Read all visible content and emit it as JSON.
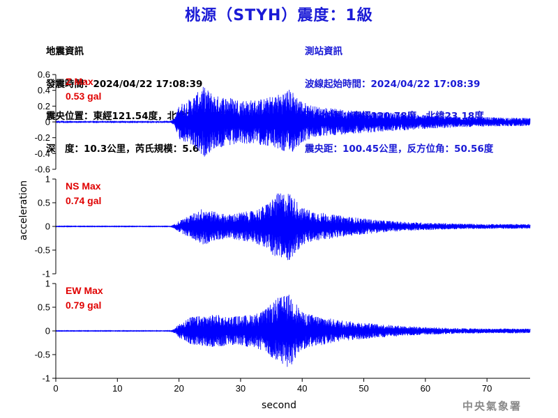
{
  "header": {
    "title": "桃源（STYH）震度：1級",
    "event_info": [
      "地震資訊",
      "發震時間：2024/04/22 17:08:39",
      "震央位置：東經121.54度，北緯23.76度",
      "深　度：10.3公里，芮氏規模：5.6"
    ],
    "station_info": [
      "測站資訊",
      "波線起始時間：2024/04/22 17:08:39",
      "測站位置：東經120.78度，北緯23.18度",
      "震央距：100.45公里，反方位角：50.56度"
    ]
  },
  "footer": {
    "agency": "中央氣象署"
  },
  "colors": {
    "title": "#1a1ad6",
    "trace": "#0000ff",
    "max_label": "#e00000",
    "axis": "#000000"
  },
  "chart_data": [
    {
      "type": "line",
      "component": "Z",
      "max_label": "Z Max",
      "max_value_label": "0.53 gal",
      "ylim": [
        -0.6,
        0.6
      ],
      "y_ticks": [
        "0.6",
        "0.4",
        "0.2",
        "0",
        "-0.2",
        "-0.4",
        "-0.6"
      ],
      "peak": 0.53,
      "envelope": [
        [
          0,
          0.006
        ],
        [
          18.5,
          0.006
        ],
        [
          19.3,
          0.05
        ],
        [
          20,
          0.22
        ],
        [
          22,
          0.3
        ],
        [
          24,
          0.45
        ],
        [
          26,
          0.33
        ],
        [
          28,
          0.32
        ],
        [
          30,
          0.28
        ],
        [
          32,
          0.28
        ],
        [
          34,
          0.3
        ],
        [
          36,
          0.35
        ],
        [
          38,
          0.42
        ],
        [
          40,
          0.26
        ],
        [
          42,
          0.2
        ],
        [
          45,
          0.17
        ],
        [
          48,
          0.15
        ],
        [
          52,
          0.13
        ],
        [
          56,
          0.11
        ],
        [
          60,
          0.09
        ],
        [
          65,
          0.07
        ],
        [
          70,
          0.06
        ],
        [
          77,
          0.05
        ]
      ]
    },
    {
      "type": "line",
      "component": "NS",
      "max_label": "NS Max",
      "max_value_label": "0.74 gal",
      "ylim": [
        -1,
        1
      ],
      "y_ticks": [
        "1",
        "0.5",
        "0",
        "-0.5",
        "-1"
      ],
      "peak": 0.74,
      "envelope": [
        [
          0,
          0.006
        ],
        [
          18.5,
          0.006
        ],
        [
          19.3,
          0.05
        ],
        [
          20,
          0.12
        ],
        [
          22,
          0.25
        ],
        [
          24,
          0.4
        ],
        [
          26,
          0.3
        ],
        [
          28,
          0.25
        ],
        [
          30,
          0.3
        ],
        [
          32,
          0.33
        ],
        [
          34,
          0.45
        ],
        [
          36,
          0.7
        ],
        [
          38,
          0.72
        ],
        [
          40,
          0.4
        ],
        [
          42,
          0.32
        ],
        [
          45,
          0.25
        ],
        [
          48,
          0.2
        ],
        [
          52,
          0.14
        ],
        [
          56,
          0.1
        ],
        [
          60,
          0.08
        ],
        [
          65,
          0.06
        ],
        [
          70,
          0.05
        ],
        [
          77,
          0.05
        ]
      ]
    },
    {
      "type": "line",
      "component": "EW",
      "max_label": "EW Max",
      "max_value_label": "0.79 gal",
      "ylim": [
        -1,
        1
      ],
      "y_ticks": [
        "1",
        "0.5",
        "0",
        "-0.5",
        "-1"
      ],
      "peak": 0.79,
      "envelope": [
        [
          0,
          0.006
        ],
        [
          18.5,
          0.006
        ],
        [
          19.3,
          0.05
        ],
        [
          20,
          0.15
        ],
        [
          22,
          0.3
        ],
        [
          24,
          0.32
        ],
        [
          26,
          0.35
        ],
        [
          28,
          0.3
        ],
        [
          30,
          0.32
        ],
        [
          32,
          0.35
        ],
        [
          34,
          0.45
        ],
        [
          36,
          0.7
        ],
        [
          38,
          0.78
        ],
        [
          40,
          0.4
        ],
        [
          42,
          0.33
        ],
        [
          45,
          0.25
        ],
        [
          48,
          0.2
        ],
        [
          52,
          0.15
        ],
        [
          56,
          0.11
        ],
        [
          60,
          0.08
        ],
        [
          65,
          0.06
        ],
        [
          70,
          0.05
        ],
        [
          77,
          0.05
        ]
      ]
    }
  ],
  "x_axis": {
    "label": "second",
    "xlim": [
      0,
      77
    ],
    "ticks": [
      "0",
      "10",
      "20",
      "30",
      "40",
      "50",
      "60",
      "70"
    ]
  },
  "y_axis": {
    "label": "acceleration"
  }
}
